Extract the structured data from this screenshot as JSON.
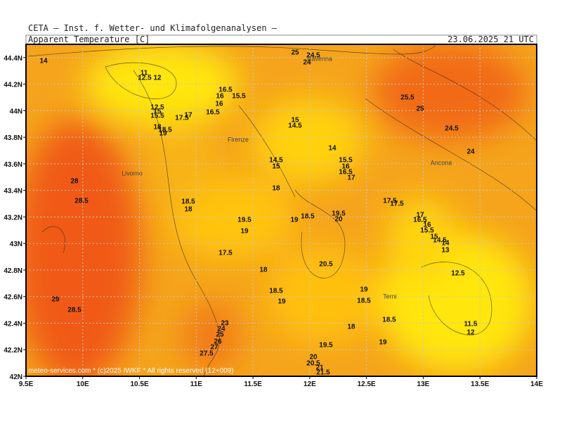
{
  "header": {
    "title": "CETA – Inst. f. Wetter- und Klimafolgenanalysen –",
    "subtitle": "Apparent Temperature [C]",
    "date": "23.06.2025 21 UTC"
  },
  "map": {
    "xlim": [
      9.5,
      14
    ],
    "ylim": [
      42,
      44.5
    ],
    "xticks": [
      {
        "value": 9.5,
        "label": "9.5E"
      },
      {
        "value": 10,
        "label": "10E"
      },
      {
        "value": 10.5,
        "label": "10.5E"
      },
      {
        "value": 11,
        "label": "11E"
      },
      {
        "value": 11.5,
        "label": "11.5E"
      },
      {
        "value": 12,
        "label": "12E"
      },
      {
        "value": 12.5,
        "label": "12.5E"
      },
      {
        "value": 13,
        "label": "13E"
      },
      {
        "value": 13.5,
        "label": "13.5E"
      },
      {
        "value": 14,
        "label": "14E"
      }
    ],
    "yticks": [
      {
        "value": 42,
        "label": "42N"
      },
      {
        "value": 42.2,
        "label": "42.2N"
      },
      {
        "value": 42.4,
        "label": "42.4N"
      },
      {
        "value": 42.6,
        "label": "42.6N"
      },
      {
        "value": 42.8,
        "label": "42.8N"
      },
      {
        "value": 43,
        "label": "43N"
      },
      {
        "value": 43.2,
        "label": "43.2N"
      },
      {
        "value": 43.4,
        "label": "43.4N"
      },
      {
        "value": 43.6,
        "label": "43.6N"
      },
      {
        "value": 43.8,
        "label": "43.8N"
      },
      {
        "value": 44,
        "label": "44N"
      },
      {
        "value": 44.2,
        "label": "44.2N"
      },
      {
        "value": 44.4,
        "label": "44.4N"
      }
    ],
    "contour_labels": [
      "25",
      "24.5",
      "24",
      "14",
      "11",
      "12.5",
      "12",
      "16.5",
      "15.5",
      "16",
      "16",
      "16.5",
      "17",
      "17.5",
      "12.5",
      "15",
      "15.5",
      "18",
      "18.5",
      "19",
      "25.5",
      "25",
      "24.5",
      "24",
      "15",
      "14.5",
      "14",
      "14.5",
      "15",
      "15.5",
      "16",
      "16.5",
      "17",
      "28",
      "28.5",
      "18",
      "18.5",
      "18",
      "19.5",
      "19",
      "19",
      "18.5",
      "19.5",
      "20",
      "17.5",
      "17.5",
      "17",
      "16.5",
      "16",
      "15.5",
      "15",
      "14.5",
      "14",
      "13",
      "17.5",
      "18",
      "20.5",
      "12.5",
      "18.5",
      "19",
      "19",
      "18.5",
      "18.5",
      "18",
      "29",
      "28.5",
      "11.5",
      "12",
      "19.5",
      "19",
      "27.5",
      "20",
      "20.5",
      "21",
      "21.5",
      "23",
      "24",
      "25",
      "26",
      "27"
    ],
    "places": [
      "Ravenna",
      "Firenze",
      "Livorno",
      "Ancona",
      "Terni"
    ]
  },
  "footer": "meteo-services.com * (c)2025 IWKF * All rights reserved (12+009)"
}
